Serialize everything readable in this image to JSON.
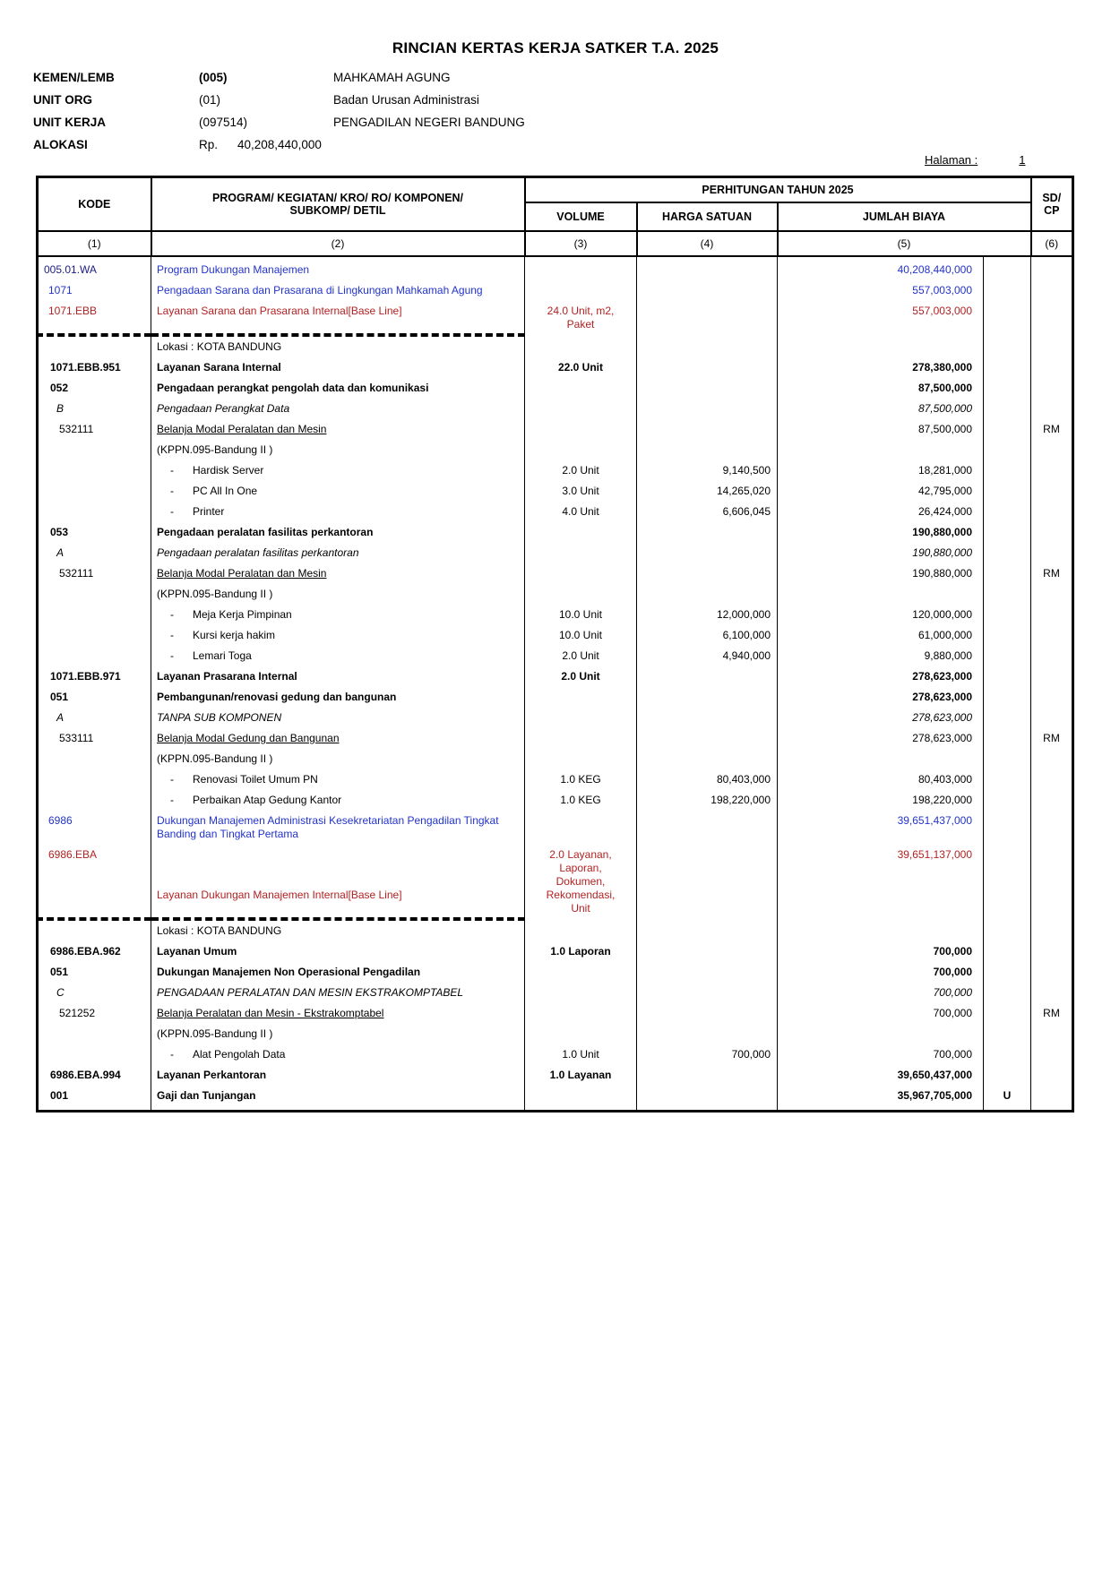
{
  "page": {
    "title": "RINCIAN KERTAS KERJA SATKER T.A. 2025",
    "halaman_label": "Halaman :",
    "halaman_value": "1",
    "meta": [
      {
        "label": "KEMEN/LEMB",
        "code": "(005)",
        "value": "MAHKAMAH AGUNG"
      },
      {
        "label": "UNIT ORG",
        "code": "(01)",
        "value": "Badan Urusan Administrasi"
      },
      {
        "label": "UNIT KERJA",
        "code": "(097514)",
        "value": "PENGADILAN NEGERI BANDUNG"
      },
      {
        "label": "ALOKASI",
        "code": "Rp.",
        "value": "40,208,440,000"
      }
    ]
  },
  "colors": {
    "blue": "#2233cc",
    "navy": "#1c1c86",
    "red": "#b22222"
  },
  "table": {
    "detail_bullet": "-",
    "header": {
      "kode": "KODE",
      "uraian_line1": "PROGRAM/ KEGIATAN/ KRO/ RO/ KOMPONEN/",
      "uraian_line2": "SUBKOMP/ DETIL",
      "perhitungan": "PERHITUNGAN TAHUN 2025",
      "volume": "VOLUME",
      "harga": "HARGA SATUAN",
      "jumlah": "JUMLAH BIAYA",
      "sdcp_line1": "SD/",
      "sdcp_line2": "CP",
      "colnums": [
        "(1)",
        "(2)",
        "(3)",
        "(4)",
        "(5)",
        "(6)"
      ]
    },
    "rows": [
      {
        "style": "program",
        "kode": "005.01.WA",
        "uraian": "Program Dukungan Manajemen",
        "jumlah": "40,208,440,000"
      },
      {
        "style": "kegiatan",
        "kode": "1071",
        "uraian": "Pengadaan Sarana dan Prasarana di Lingkungan Mahkamah Agung",
        "jumlah": "557,003,000"
      },
      {
        "style": "output",
        "kode": "1071.EBB",
        "uraian": "Layanan Sarana dan Prasarana Internal[Base Line]",
        "volume": "24.0 Unit, m2,\nPaket",
        "jumlah": "557,003,000"
      },
      {
        "style": "lokasi",
        "uraian": "Lokasi : KOTA BANDUNG"
      },
      {
        "style": "ro",
        "kode": "1071.EBB.951",
        "uraian": "Layanan Sarana Internal",
        "volume": "22.0 Unit",
        "jumlah": "278,380,000"
      },
      {
        "style": "komp",
        "kode": "052",
        "uraian": "Pengadaan perangkat pengolah data dan komunikasi",
        "jumlah": "87,500,000"
      },
      {
        "style": "subkomp",
        "kode": "B",
        "uraian": "Pengadaan Perangkat Data",
        "jumlah": "87,500,000"
      },
      {
        "style": "akun",
        "kode": "532111",
        "uraian": "Belanja Modal Peralatan dan Mesin",
        "jumlah": "87,500,000",
        "sd": "RM"
      },
      {
        "style": "kppn",
        "uraian": "(KPPN.095-Bandung II )"
      },
      {
        "style": "detail",
        "uraian": "Hardisk Server",
        "volume": "2.0 Unit",
        "harga": "9,140,500",
        "jumlah": "18,281,000"
      },
      {
        "style": "detail",
        "uraian": "PC All In One",
        "volume": "3.0 Unit",
        "harga": "14,265,020",
        "jumlah": "42,795,000"
      },
      {
        "style": "detail",
        "uraian": "Printer",
        "volume": "4.0 Unit",
        "harga": "6,606,045",
        "jumlah": "26,424,000"
      },
      {
        "style": "komp",
        "kode": "053",
        "uraian": "Pengadaan peralatan fasilitas perkantoran",
        "jumlah": "190,880,000"
      },
      {
        "style": "subkomp",
        "kode": "A",
        "uraian": "Pengadaan peralatan fasilitas perkantoran",
        "jumlah": "190,880,000"
      },
      {
        "style": "akun",
        "kode": "532111",
        "uraian": "Belanja Modal Peralatan dan Mesin",
        "jumlah": "190,880,000",
        "sd": "RM"
      },
      {
        "style": "kppn",
        "uraian": "(KPPN.095-Bandung II )"
      },
      {
        "style": "detail",
        "uraian": "Meja Kerja Pimpinan",
        "volume": "10.0 Unit",
        "harga": "12,000,000",
        "jumlah": "120,000,000"
      },
      {
        "style": "detail",
        "uraian": "Kursi kerja hakim",
        "volume": "10.0 Unit",
        "harga": "6,100,000",
        "jumlah": "61,000,000"
      },
      {
        "style": "detail",
        "uraian": "Lemari Toga",
        "volume": "2.0 Unit",
        "harga": "4,940,000",
        "jumlah": "9,880,000"
      },
      {
        "style": "ro",
        "kode": "1071.EBB.971",
        "uraian": "Layanan Prasarana Internal",
        "volume": "2.0 Unit",
        "jumlah": "278,623,000"
      },
      {
        "style": "komp",
        "kode": "051",
        "uraian": "Pembangunan/renovasi gedung dan bangunan",
        "jumlah": "278,623,000"
      },
      {
        "style": "subkomp",
        "kode": "A",
        "uraian": "TANPA SUB KOMPONEN",
        "jumlah": "278,623,000"
      },
      {
        "style": "akun",
        "kode": "533111",
        "uraian": "Belanja Modal Gedung dan Bangunan",
        "jumlah": "278,623,000",
        "sd": "RM"
      },
      {
        "style": "kppn",
        "uraian": "(KPPN.095-Bandung II )"
      },
      {
        "style": "detail",
        "uraian": "Renovasi Toilet Umum PN",
        "volume": "1.0 KEG",
        "harga": "80,403,000",
        "jumlah": "80,403,000"
      },
      {
        "style": "detail",
        "uraian": "Perbaikan Atap Gedung Kantor",
        "volume": "1.0 KEG",
        "harga": "198,220,000",
        "jumlah": "198,220,000"
      },
      {
        "style": "kegiatan",
        "kode": "6986",
        "uraian": "Dukungan Manajemen Administrasi Kesekretariatan Pengadilan Tingkat Banding dan Tingkat Pertama",
        "jumlah": "39,651,437,000"
      },
      {
        "style": "output",
        "mod": "m-offset",
        "kode": "6986.EBA",
        "uraian": "Layanan Dukungan Manajemen Internal[Base Line]",
        "volume": "2.0 Layanan,\nLaporan,\nDokumen,\nRekomendasi,\nUnit",
        "jumlah": "39,651,137,000"
      },
      {
        "style": "lokasi",
        "uraian": "Lokasi : KOTA BANDUNG"
      },
      {
        "style": "ro",
        "kode": "6986.EBA.962",
        "uraian": "Layanan Umum",
        "volume": "1.0 Laporan",
        "jumlah": "700,000"
      },
      {
        "style": "komp",
        "kode": "051",
        "uraian": "Dukungan Manajemen Non Operasional Pengadilan",
        "jumlah": "700,000"
      },
      {
        "style": "subkomp",
        "kode": "C",
        "uraian": "PENGADAAN PERALATAN DAN MESIN EKSTRAKOMPTABEL",
        "jumlah": "700,000"
      },
      {
        "style": "akun",
        "kode": "521252",
        "uraian": "Belanja Peralatan dan Mesin - Ekstrakomptabel",
        "jumlah": "700,000",
        "sd": "RM"
      },
      {
        "style": "kppn",
        "uraian": "(KPPN.095-Bandung II )"
      },
      {
        "style": "detail",
        "uraian": "Alat Pengolah Data",
        "volume": "1.0 Unit",
        "harga": "700,000",
        "jumlah": "700,000"
      },
      {
        "style": "ro",
        "kode": "6986.EBA.994",
        "uraian": "Layanan Perkantoran",
        "volume": "1.0 Layanan",
        "jumlah": "39,650,437,000"
      },
      {
        "style": "komp",
        "kode": "001",
        "uraian": "Gaji dan Tunjangan",
        "jumlah": "35,967,705,000",
        "mid": "U"
      }
    ]
  }
}
